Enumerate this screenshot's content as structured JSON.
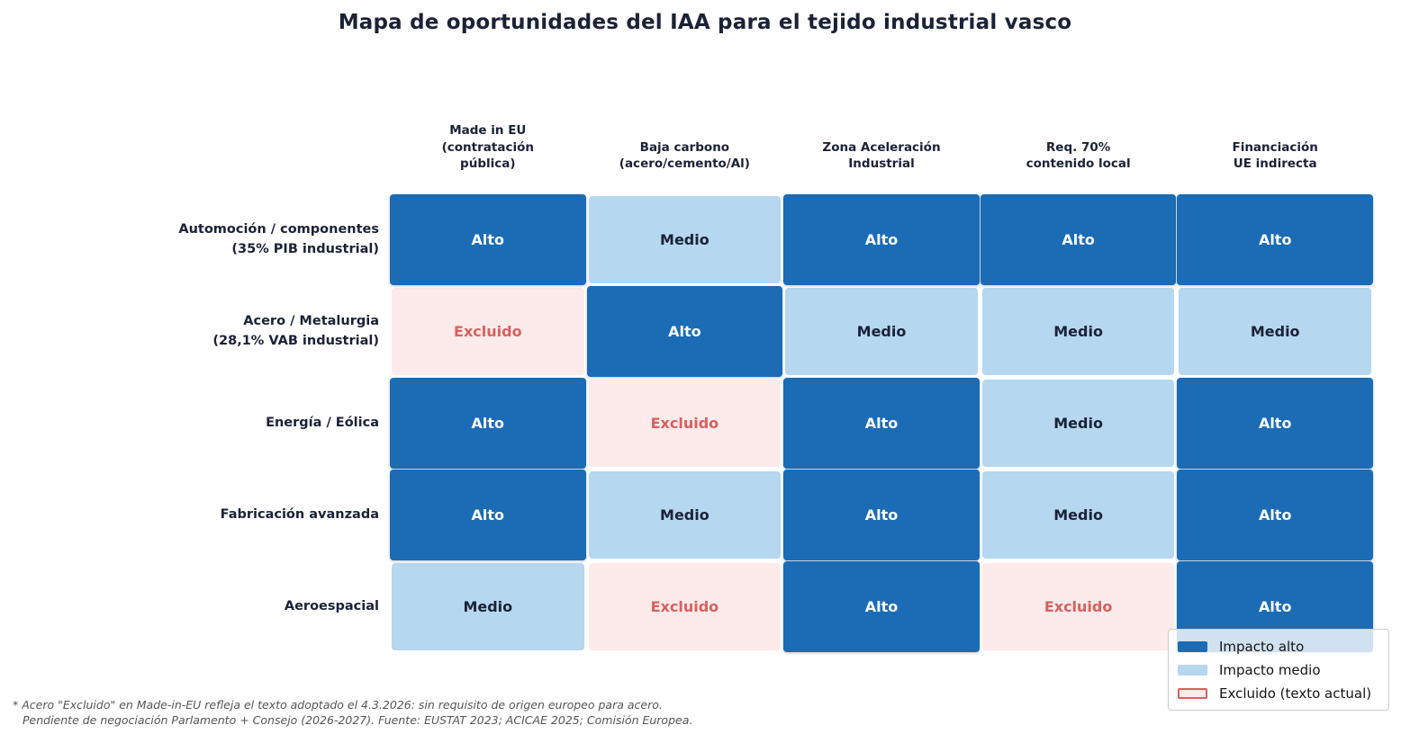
{
  "chart_data": {
    "type": "heatmap",
    "title": "Mapa de oportunidades del IAA para el tejido industrial vasco",
    "columns": [
      "Made in EU\n(contratación\npública)",
      "Baja carbono\n(acero/cemento/Al)",
      "Zona Aceleración\nIndustrial",
      "Req. 70%\ncontenido local",
      "Financiación\nUE indirecta"
    ],
    "rows": [
      "Automoción / componentes\n(35% PIB industrial)",
      "Acero / Metalurgia\n(28,1% VAB industrial)",
      "Energía / Eólica",
      "Fabricación avanzada",
      "Aeroespacial"
    ],
    "values": [
      [
        "Alto",
        "Medio",
        "Alto",
        "Alto",
        "Alto"
      ],
      [
        "Excluido",
        "Alto",
        "Medio",
        "Medio",
        "Medio"
      ],
      [
        "Alto",
        "Excluido",
        "Alto",
        "Medio",
        "Alto"
      ],
      [
        "Alto",
        "Medio",
        "Alto",
        "Medio",
        "Alto"
      ],
      [
        "Medio",
        "Excluido",
        "Alto",
        "Excluido",
        "Alto"
      ]
    ],
    "value_scale": [
      "Alto",
      "Medio",
      "Excluido"
    ],
    "legend_position": "lower right",
    "grid": "off"
  },
  "legend": {
    "items": [
      {
        "label": "Impacto alto",
        "level": "Alto"
      },
      {
        "label": "Impacto medio",
        "level": "Medio"
      },
      {
        "label": "Excluido (texto actual)",
        "level": "Excluido"
      }
    ]
  },
  "footnote": {
    "line1": "* Acero \"Excluido\" en Made-in-EU refleja el texto adoptado el 4.3.2026: sin requisito de origen europeo para acero.",
    "line2": "Pendiente de negociación Parlamento + Consejo (2026-2027). Fuente: EUSTAT 2023; ACICAE 2025; Comisión Europea."
  },
  "colors": {
    "alto_bg": "#1b6cb4",
    "alto_text": "#ffffff",
    "medio_bg": "#b5d7f0",
    "medio_text": "#1b2237",
    "excluido_bg": "#fdeaea",
    "excluido_text": "#d9605f",
    "excluido_border": "#d9605f",
    "label_text": "#1b2237",
    "footnote_text": "#555555",
    "legend_border": "#cccccc"
  }
}
